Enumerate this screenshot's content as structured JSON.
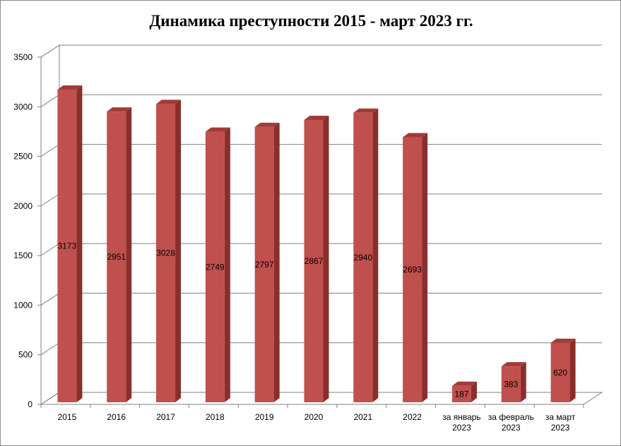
{
  "chart_data": {
    "type": "bar",
    "title": "Динамика преступности 2015 - март 2023 гг.",
    "categories": [
      "2015",
      "2016",
      "2017",
      "2018",
      "2019",
      "2020",
      "2021",
      "2022",
      "за январь 2023",
      "за февраль 2023",
      "за март 2023"
    ],
    "category_lines": [
      [
        "2015"
      ],
      [
        "2016"
      ],
      [
        "2017"
      ],
      [
        "2018"
      ],
      [
        "2019"
      ],
      [
        "2020"
      ],
      [
        "2021"
      ],
      [
        "2022"
      ],
      [
        "за январь",
        "2023"
      ],
      [
        "за февраль",
        "2023"
      ],
      [
        "за март",
        "2023"
      ]
    ],
    "values": [
      3173,
      2951,
      3028,
      2749,
      2797,
      2867,
      2940,
      2693,
      187,
      383,
      620
    ],
    "data_labels": [
      "3173",
      "2951",
      "3028",
      "2749",
      "2797",
      "2867",
      "2940",
      "2693",
      "187",
      "383",
      "620"
    ],
    "yticks": [
      0,
      500,
      1000,
      1500,
      2000,
      2500,
      3000,
      3500
    ],
    "ytick_labels": [
      "0",
      "500",
      "1000",
      "1500",
      "2000",
      "2500",
      "3000",
      "3500"
    ],
    "ylim": [
      0,
      3500
    ],
    "xlabel": "",
    "ylabel": "",
    "grid": true,
    "legend": "none",
    "bar_color": "#c0504d",
    "bar_top_color": "#a23b38",
    "bar_side_color": "#8a2e2c"
  }
}
